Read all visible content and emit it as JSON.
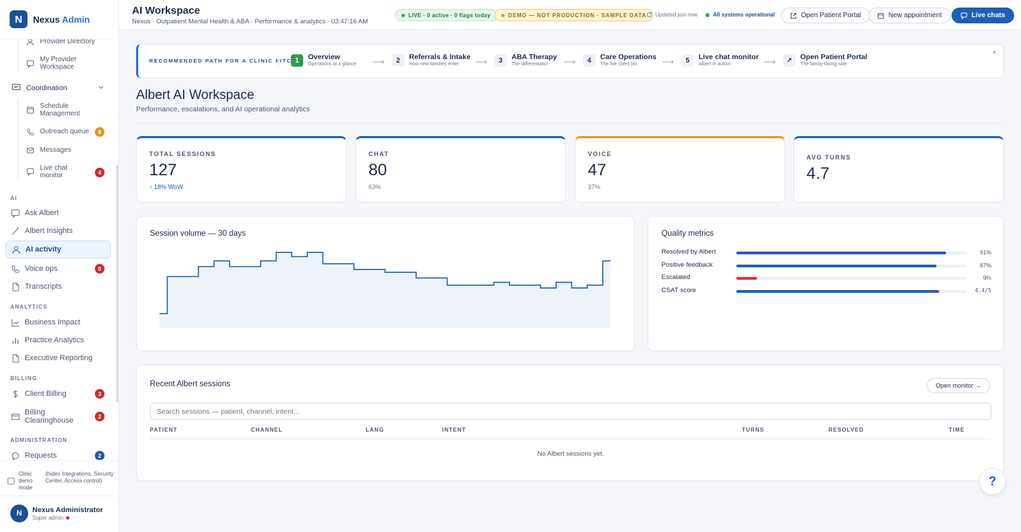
{
  "brand": {
    "logo": "N",
    "name": "Nexus",
    "accent": "Admin"
  },
  "sidebar": {
    "provider_items": [
      {
        "label": "Provider Directory",
        "icon": "person-icon"
      },
      {
        "label": "My Provider Workspace",
        "icon": "chat-icon"
      }
    ],
    "coordination": {
      "label": "Coordination",
      "items": [
        {
          "label": "Schedule Management",
          "icon": "calendar-icon"
        },
        {
          "label": "Outreach queue",
          "icon": "phone-icon",
          "badge": "8"
        },
        {
          "label": "Messages",
          "icon": "mail-icon"
        },
        {
          "label": "Live chat monitor",
          "icon": "chat-icon",
          "badge": "4"
        }
      ]
    },
    "ai_section": "AI",
    "ai_items": [
      {
        "label": "Ask Albert",
        "icon": "chat-icon"
      },
      {
        "label": "Albert Insights",
        "icon": "wand-icon"
      },
      {
        "label": "AI activity",
        "icon": "person-icon",
        "active": true
      },
      {
        "label": "Voice ops",
        "icon": "phone-icon",
        "badge": "0"
      },
      {
        "label": "Transcripts",
        "icon": "file-icon"
      }
    ],
    "analytics_section": "ANALYTICS",
    "analytics_items": [
      {
        "label": "Business Impact",
        "icon": "trend-icon"
      },
      {
        "label": "Practice Analytics",
        "icon": "bars-icon"
      },
      {
        "label": "Executive Reporting",
        "icon": "file-icon"
      }
    ],
    "billing_section": "BILLING",
    "billing_items": [
      {
        "label": "Client Billing",
        "icon": "dollar-icon",
        "badge": "3"
      },
      {
        "label": "Billing Clearinghouse",
        "icon": "card-icon",
        "badge": "2"
      }
    ],
    "admin_section": "ADMINISTRATION",
    "admin_items": [
      {
        "label": "Requests",
        "icon": "chat-icon",
        "badge": "2"
      }
    ],
    "demo_mode": {
      "label": "Clinic demo mode",
      "note": "(hides Integrations, Security Center, Access control)"
    },
    "user": {
      "initials": "N",
      "name": "Nexus Administrator",
      "role": "Super admin"
    }
  },
  "header": {
    "title": "AI Workspace",
    "subtitle": "Nexus · Outpatient Mental Health & ABA · Performance & analytics · 03:47:16 AM",
    "live_pill": "LIVE · 0 active · 0 flags today",
    "demo_pill": "DEMO — NOT PRODUCTION · SAMPLE DATA",
    "updated_label": "Updated",
    "updated_value": "just now",
    "system_status": "All systems operational",
    "btn_portal": "Open Patient Portal",
    "btn_appointment": "New appointment",
    "btn_live_chats": "Live chats"
  },
  "stepper": {
    "label": "RECOMMENDED PATH FOR A CLINIC PITCH",
    "steps": [
      {
        "num": "1",
        "title": "Overview",
        "sub": "Operations at a glance"
      },
      {
        "num": "2",
        "title": "Referrals & Intake",
        "sub": "How new families enter"
      },
      {
        "num": "3",
        "title": "ABA Therapy",
        "sub": "The differentiator"
      },
      {
        "num": "4",
        "title": "Care Operations",
        "sub": "The live client list"
      },
      {
        "num": "5",
        "title": "Live chat monitor",
        "sub": "Albert in action"
      },
      {
        "num": "↗",
        "title": "Open Patient Portal",
        "sub": "The family-facing side"
      }
    ],
    "close": "×"
  },
  "section": {
    "title": "Albert AI Workspace",
    "subtitle": "Performance, escalations, and AI operational analytics"
  },
  "kpis": [
    {
      "label": "TOTAL SESSIONS",
      "value": "127",
      "sub": "↑ 18% WoW"
    },
    {
      "label": "CHAT",
      "value": "80",
      "sub": "63%"
    },
    {
      "label": "VOICE",
      "value": "47",
      "sub": "37%"
    },
    {
      "label": "AVG TURNS",
      "value": "4.7",
      "sub": ""
    }
  ],
  "chart": {
    "title": "Session volume — 30 days",
    "color": "#1e5fb8"
  },
  "chart_data": {
    "type": "area",
    "step": true,
    "x": [
      1,
      2,
      3,
      4,
      5,
      6,
      7,
      8,
      9,
      10,
      11,
      12,
      13,
      14,
      15,
      16,
      17,
      18,
      19,
      20,
      21,
      22,
      23,
      24,
      25,
      26,
      27,
      28,
      29,
      30
    ],
    "values": [
      1.0,
      3.6,
      3.6,
      4.3,
      4.7,
      4.3,
      4.3,
      4.7,
      5.3,
      5.0,
      5.3,
      4.5,
      4.5,
      4.1,
      4.1,
      3.9,
      3.9,
      3.5,
      3.5,
      3.0,
      3.0,
      3.0,
      3.2,
      3.0,
      3.0,
      2.8,
      3.2,
      2.8,
      3.0,
      4.7
    ],
    "ylim": [
      0,
      5.5
    ],
    "grid": false,
    "legend": "none"
  },
  "quality": {
    "title": "Quality metrics",
    "rows": [
      {
        "label": "Resolved by Albert",
        "value": "91%",
        "fraction": 0.91,
        "color": "#1e5fb8"
      },
      {
        "label": "Positive feedback",
        "value": "87%",
        "fraction": 0.87,
        "color": "#1e5fb8"
      },
      {
        "label": "Escalated",
        "value": "9%",
        "fraction": 0.09,
        "color": "#d9363e"
      },
      {
        "label": "CSAT score",
        "value": "4.4/5",
        "fraction": 0.88,
        "color": "#1e5fb8"
      }
    ]
  },
  "sessions": {
    "title": "Recent Albert sessions",
    "open_monitor": "Open monitor →",
    "search_placeholder": "Search sessions — patient, channel, intent...",
    "columns": [
      "PATIENT",
      "CHANNEL",
      "LANG",
      "INTENT",
      "TURNS",
      "RESOLVED",
      "TIME"
    ],
    "empty": "No Albert sessions yet."
  },
  "help": "?"
}
